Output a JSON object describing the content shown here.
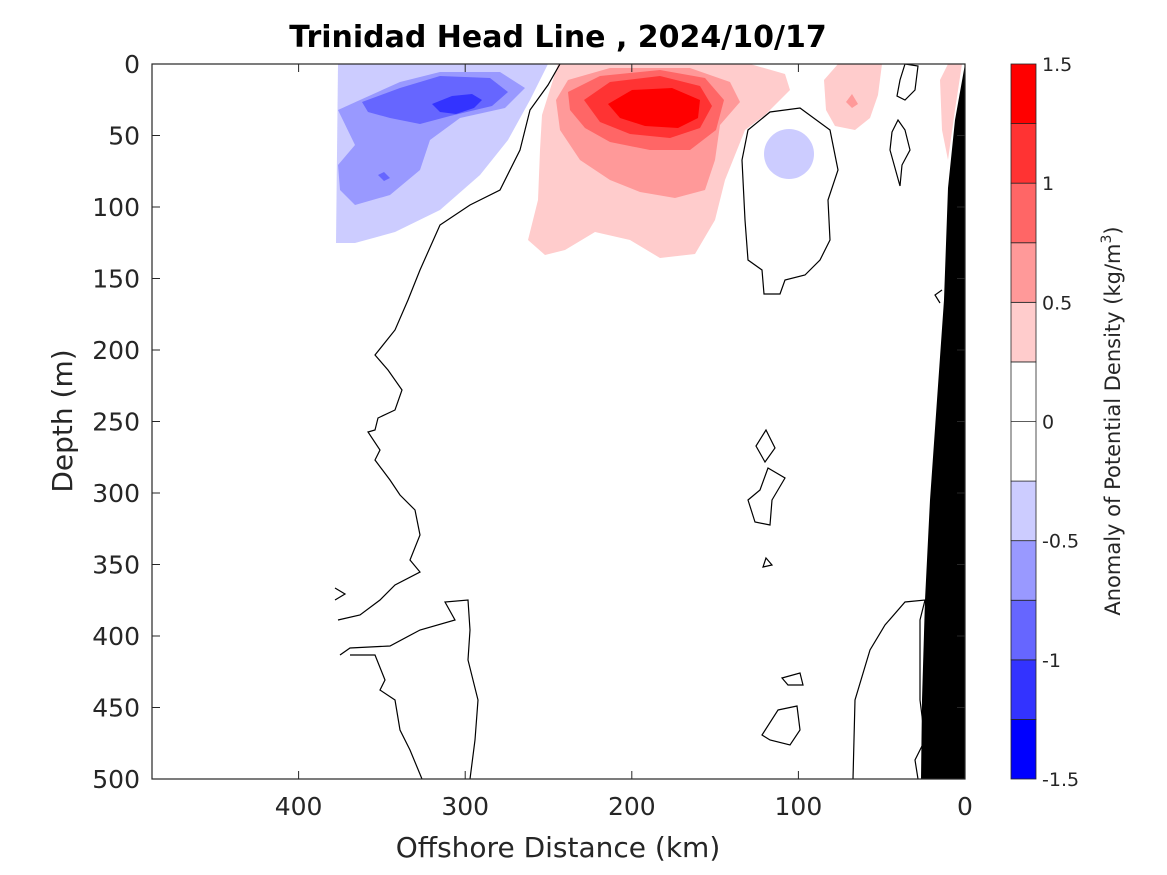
{
  "chart_data": {
    "type": "heatmap",
    "title": "Trinidad Head Line , 2024/10/17",
    "xlabel": "Offshore Distance (km)",
    "ylabel": "Depth (m)",
    "xlim": [
      488,
      0
    ],
    "ylim": [
      0,
      500
    ],
    "x_ticks": [
      400,
      300,
      200,
      100,
      0
    ],
    "y_ticks": [
      0,
      50,
      100,
      150,
      200,
      250,
      300,
      350,
      400,
      450,
      500
    ],
    "x_direction": "reversed",
    "y_direction": "reversed",
    "colorbar": {
      "label_prefix": "Anomaly of Potential Density (kg/m",
      "label_superscript": "3",
      "label_suffix": ")",
      "limits": [
        -1.5,
        1.5
      ],
      "ticks": [
        "1.5",
        "1",
        "0.5",
        "0",
        "-0.5",
        "-1",
        "-1.5"
      ],
      "levels": [
        -1.5,
        -1.25,
        -1.0,
        -0.75,
        -0.5,
        -0.25,
        0.25,
        0.5,
        0.75,
        1.0,
        1.25,
        1.5
      ],
      "colors": [
        "#0000ff",
        "#3333ff",
        "#6666ff",
        "#9999ff",
        "#ccccff",
        "#ffffff",
        "#ffffff",
        "#ffcccc",
        "#ff9999",
        "#ff6666",
        "#ff3333",
        "#ff0000"
      ]
    },
    "anomaly_regions": [
      {
        "sign": "negative",
        "x_range": [
          378,
          262
        ],
        "depth_range": [
          0,
          125
        ],
        "peak_value": -1.1,
        "peak_x": 318,
        "peak_depth": 28
      },
      {
        "sign": "negative",
        "x_range": [
          110,
          90
        ],
        "depth_range": [
          48,
          80
        ],
        "peak_value": -0.35
      },
      {
        "sign": "positive",
        "x_range": [
          250,
          140
        ],
        "depth_range": [
          0,
          133
        ],
        "peak_value": 1.3,
        "peak_x": 185,
        "peak_depth": 32
      },
      {
        "sign": "positive",
        "x_range": [
          85,
          45
        ],
        "depth_range": [
          0,
          45
        ],
        "peak_value": 0.6
      }
    ],
    "seafloor_color": "#000000"
  }
}
